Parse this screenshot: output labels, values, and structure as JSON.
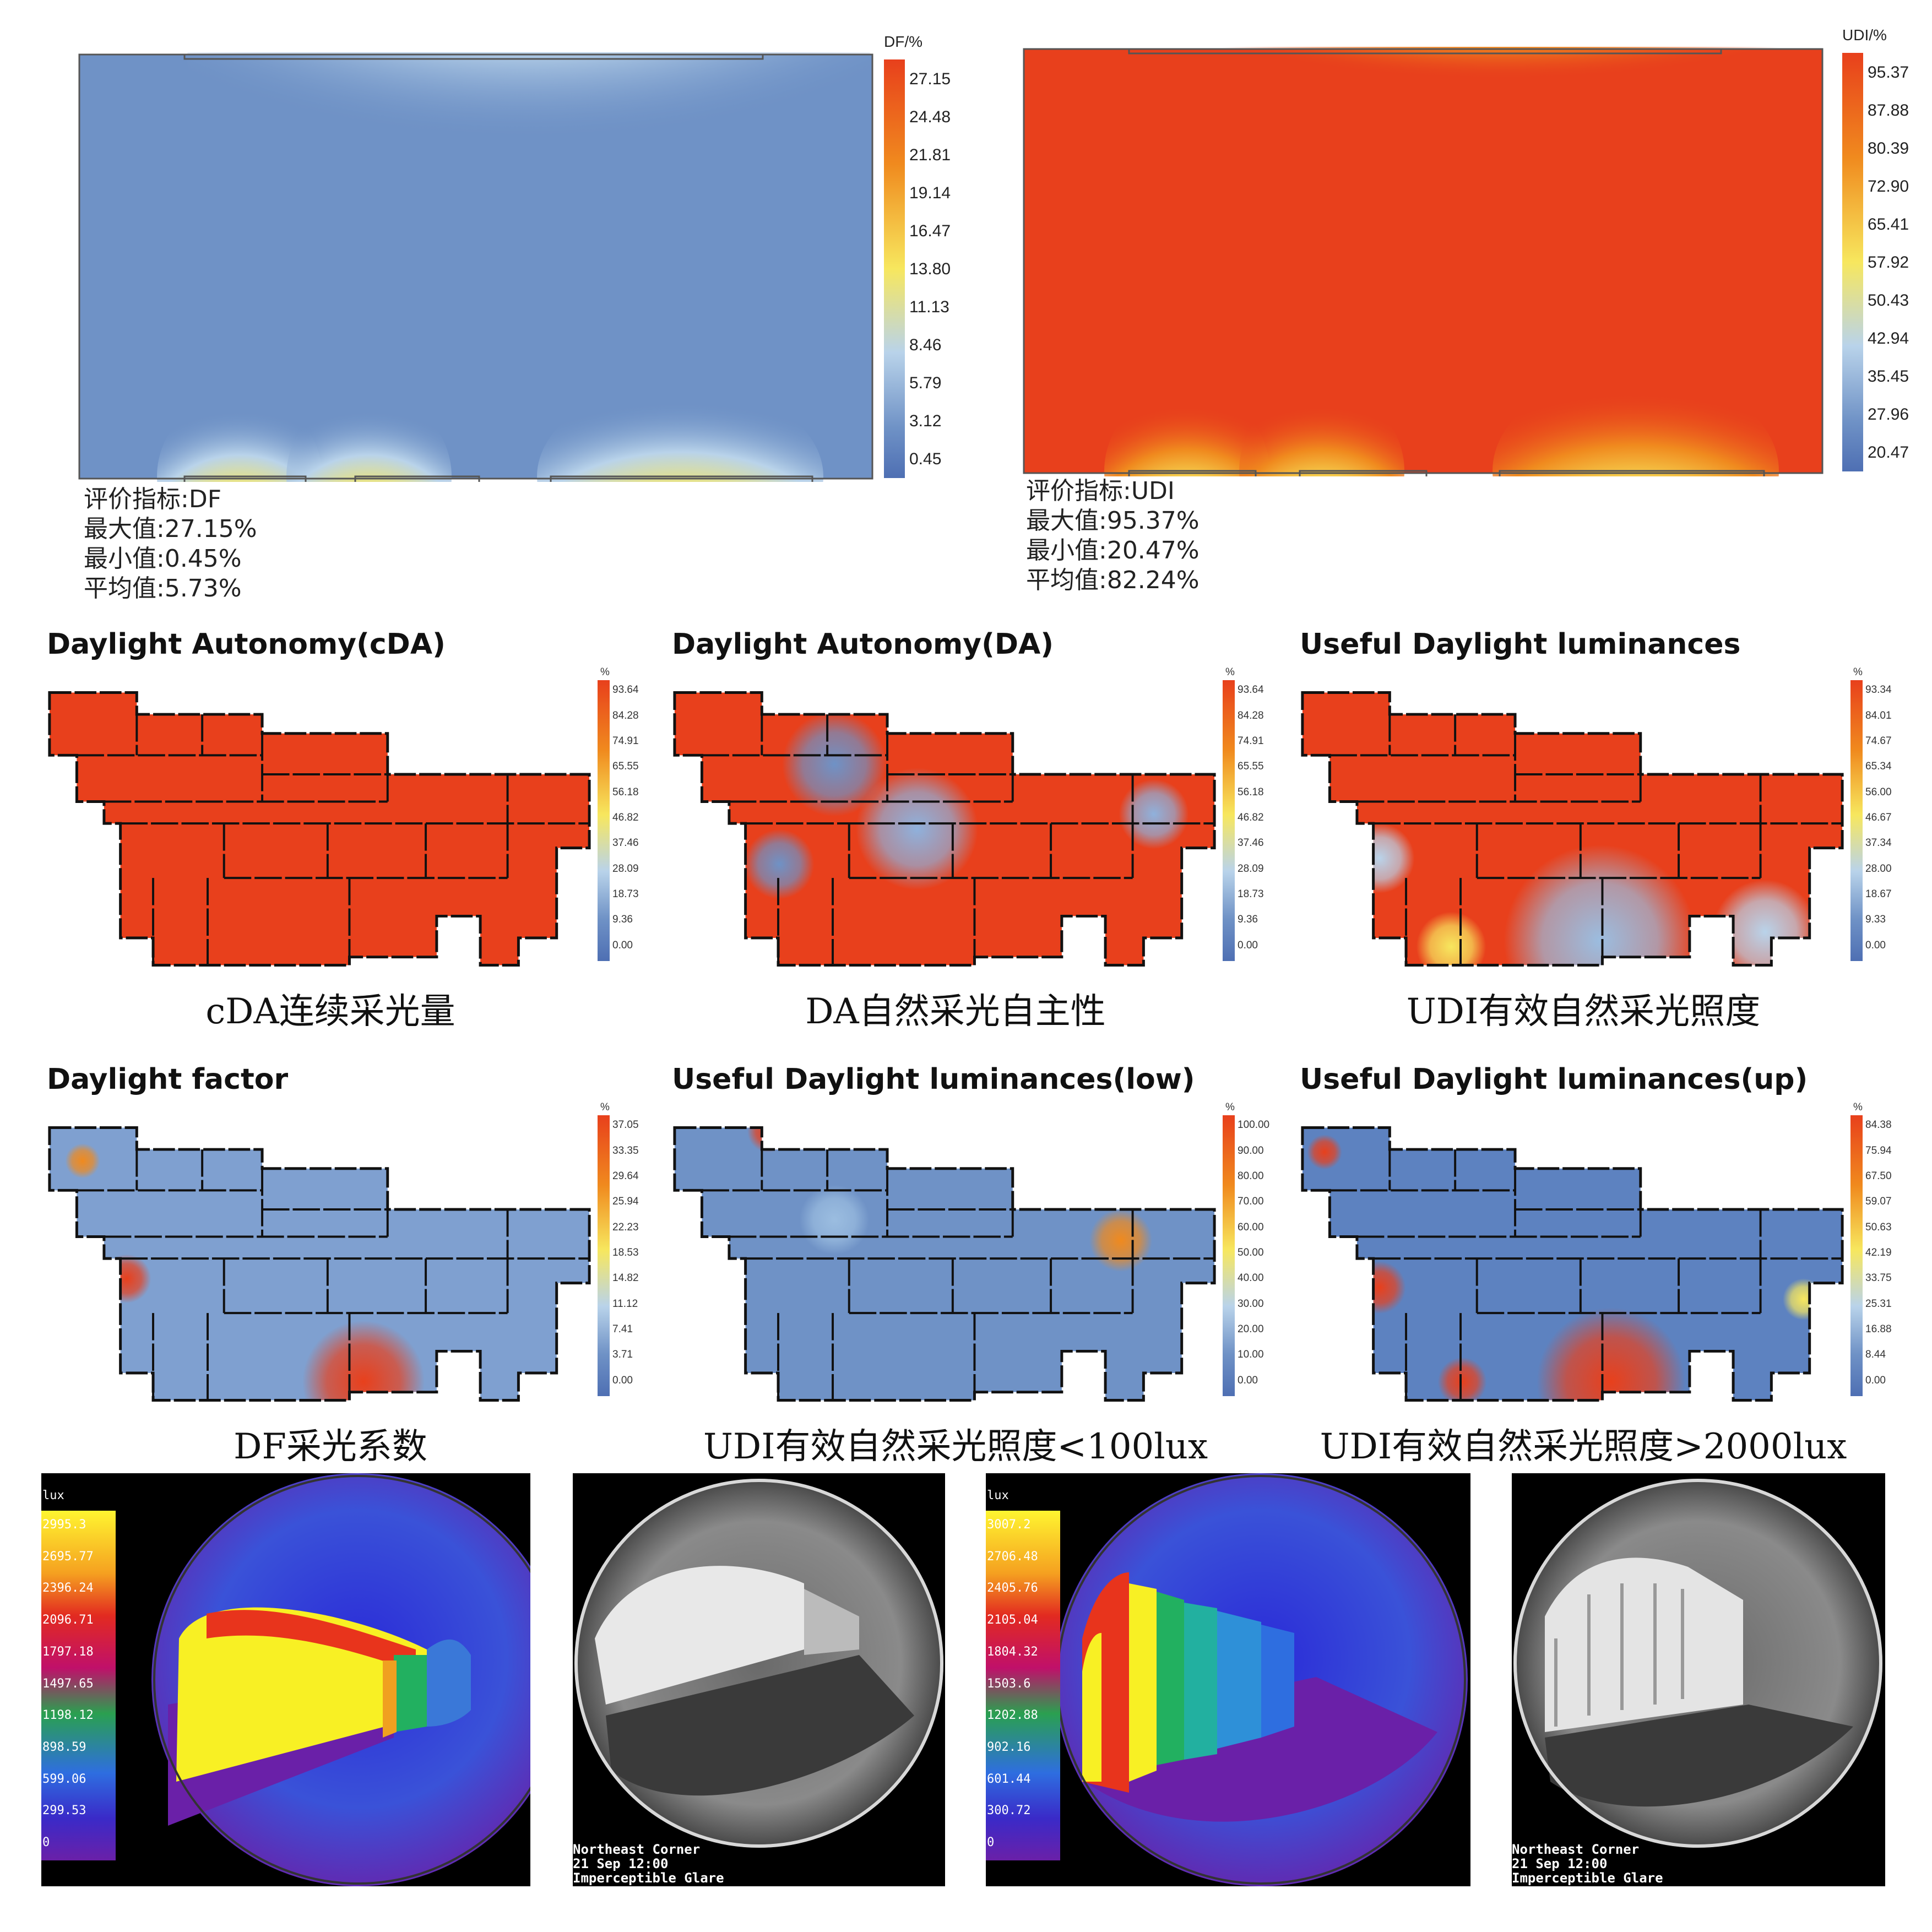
{
  "top": {
    "df": {
      "legend_title": "DF/%",
      "ticks": [
        "27.15",
        "24.48",
        "21.81",
        "19.14",
        "16.47",
        "13.80",
        "11.13",
        "8.46",
        "5.79",
        "3.12",
        "0.45"
      ],
      "stats": [
        "评价指标:DF",
        "最大值:27.15%",
        "最小值:0.45%",
        "平均值:5.73%"
      ]
    },
    "udi": {
      "legend_title": "UDI/%",
      "ticks": [
        "95.37",
        "87.88",
        "80.39",
        "72.90",
        "65.41",
        "57.92",
        "50.43",
        "42.94",
        "35.45",
        "27.96",
        "20.47"
      ],
      "stats": [
        "评价指标:UDI",
        "最大值:95.37%",
        "最小值:20.47%",
        "平均值:82.24%"
      ]
    }
  },
  "plans": [
    {
      "title": "Daylight Autonomy(cDA)",
      "caption": "cDA连续采光量",
      "unit": "%",
      "ticks": [
        "93.64",
        "84.28",
        "74.91",
        "65.55",
        "56.18",
        "46.82",
        "37.46",
        "28.09",
        "18.73",
        "9.36",
        "0.00"
      ]
    },
    {
      "title": "Daylight Autonomy(DA)",
      "caption": "DA自然采光自主性",
      "unit": "%",
      "ticks": [
        "93.64",
        "84.28",
        "74.91",
        "65.55",
        "56.18",
        "46.82",
        "37.46",
        "28.09",
        "18.73",
        "9.36",
        "0.00"
      ]
    },
    {
      "title": "Useful Daylight luminances",
      "caption": "UDI有效自然采光照度",
      "unit": "%",
      "ticks": [
        "93.34",
        "84.01",
        "74.67",
        "65.34",
        "56.00",
        "46.67",
        "37.34",
        "28.00",
        "18.67",
        "9.33",
        "0.00"
      ]
    },
    {
      "title": "Daylight factor",
      "caption": "DF采光系数",
      "unit": "%",
      "ticks": [
        "37.05",
        "33.35",
        "29.64",
        "25.94",
        "22.23",
        "18.53",
        "14.82",
        "11.12",
        "7.41",
        "3.71",
        "0.00"
      ]
    },
    {
      "title": "Useful Daylight luminances(low)",
      "caption": "UDI有效自然采光照度<100lux",
      "unit": "%",
      "ticks": [
        "100.00",
        "90.00",
        "80.00",
        "70.00",
        "60.00",
        "50.00",
        "40.00",
        "30.00",
        "20.00",
        "10.00",
        "0.00"
      ]
    },
    {
      "title": "Useful Daylight luminances(up)",
      "caption": "UDI有效自然采光照度>2000lux",
      "unit": "%",
      "ticks": [
        "84.38",
        "75.94",
        "67.50",
        "59.07",
        "50.63",
        "42.19",
        "33.75",
        "25.31",
        "16.88",
        "8.44",
        "0.00"
      ]
    }
  ],
  "renders": [
    {
      "unit": "lux",
      "ticks": [
        "2995.3",
        "2695.77",
        "2396.24",
        "2096.71",
        "1797.18",
        "1497.65",
        "1198.12",
        "898.59",
        "599.06",
        "299.53",
        "0"
      ]
    },
    {
      "unit": "lux",
      "ticks": [
        "3007.2",
        "2706.48",
        "2405.76",
        "2105.04",
        "1804.32",
        "1503.6",
        "1202.88",
        "902.16",
        "601.44",
        "300.72",
        "0"
      ]
    }
  ],
  "glare": [
    {
      "lines": [
        "Northeast Corner",
        "21 Sep 12:00",
        "Imperceptible Glare"
      ]
    },
    {
      "lines": [
        "Northeast Corner",
        "21 Sep 12:00",
        "Imperceptible Glare"
      ]
    }
  ],
  "colors": {
    "heat_red": "#e8401c",
    "heat_orange": "#f08a1e",
    "heat_yellow": "#f7e75e",
    "heat_lightblue": "#b9d3ea",
    "heat_blue": "#6f92c6",
    "heat_darkblue": "#4e6fb3"
  }
}
